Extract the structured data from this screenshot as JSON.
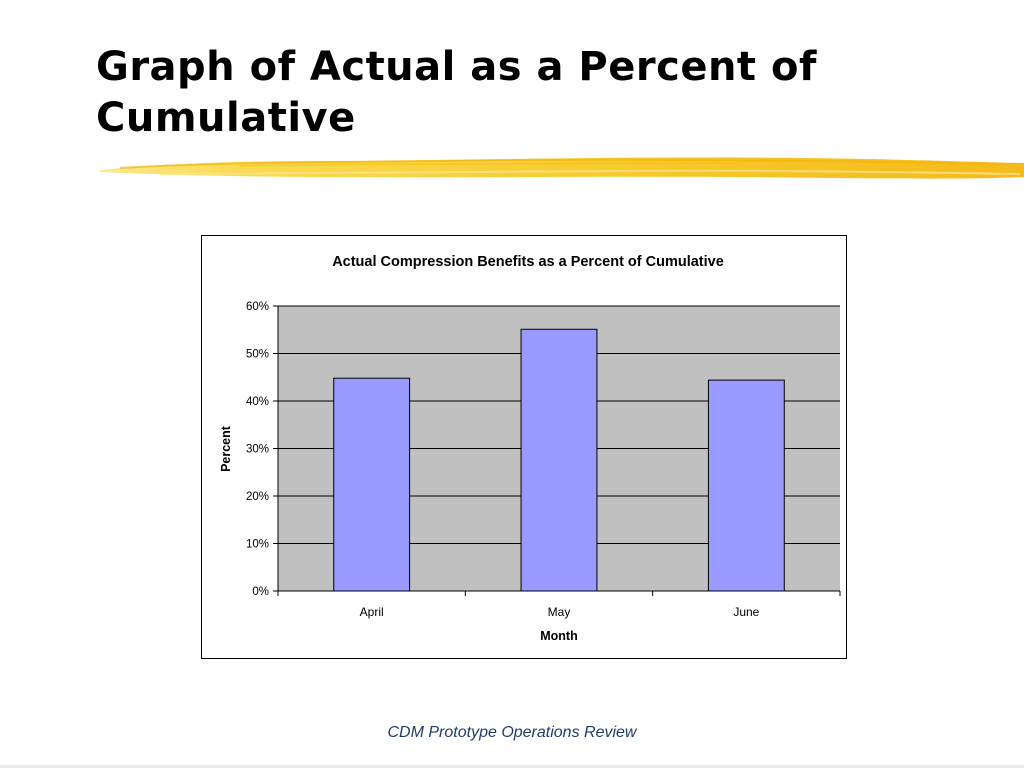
{
  "slide": {
    "title_line1": "Graph of Actual as a Percent of",
    "title_line2": "Cumulative",
    "footer": "CDM Prototype Operations Review",
    "accent_color": "#f7c51e"
  },
  "chart_data": {
    "type": "bar",
    "title": "Actual Compression Benefits as a Percent of Cumulative",
    "categories": [
      "April",
      "May",
      "June"
    ],
    "values": [
      0.448,
      0.551,
      0.444
    ],
    "xlabel": "Month",
    "ylabel": "Percent",
    "ylim": [
      0,
      0.6
    ],
    "y_ticks": [
      "0%",
      "10%",
      "20%",
      "30%",
      "40%",
      "50%",
      "60%"
    ],
    "grid": true,
    "legend": "none",
    "colors": {
      "bar_fill": "#9999ff",
      "bar_stroke": "#000000",
      "plot_background": "#c0c0c0",
      "gridline": "#000000"
    }
  }
}
